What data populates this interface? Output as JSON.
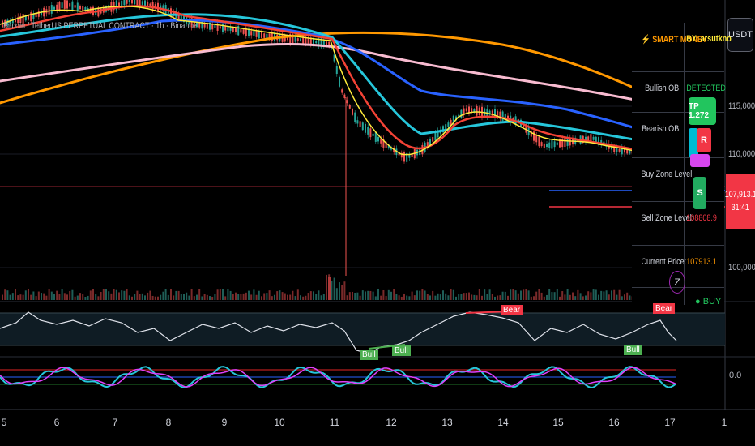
{
  "symbol_title": "Bitcoin / TetherUS PERPETUAL CONTRACT · 1h · Binance",
  "currency": "USDT",
  "price_axis": {
    "labels": [
      {
        "text": "115,000.0",
        "price": 115000
      },
      {
        "text": "110,000.0",
        "price": 110000
      },
      {
        "text": "100,000.0",
        "price": 100000
      }
    ],
    "current": {
      "price_text": "107,913.1",
      "countdown": "31:41",
      "price": 107913.1
    }
  },
  "oscillator_axis": {
    "label": "0.0"
  },
  "time_axis": [
    {
      "text": "5",
      "index": 0
    },
    {
      "text": "6",
      "index": 1
    },
    {
      "text": "7",
      "index": 2
    },
    {
      "text": "8",
      "index": 3
    },
    {
      "text": "9",
      "index": 4
    },
    {
      "text": "10",
      "index": 5
    },
    {
      "text": "11",
      "index": 6
    },
    {
      "text": "12",
      "index": 7
    },
    {
      "text": "13",
      "index": 8
    },
    {
      "text": "14",
      "index": 9
    },
    {
      "text": "15",
      "index": 10
    },
    {
      "text": "16",
      "index": 11
    },
    {
      "text": "17",
      "index": 12
    },
    {
      "text": "1",
      "index": 13
    }
  ],
  "info_table": {
    "header_title": "⚡ SMART MONEY",
    "header_author": "BY: arsutkno",
    "rows": [
      {
        "label": "Bullish OB:",
        "value": "DETECTED",
        "color": "#22c55e"
      },
      {
        "label": "Bearish OB:",
        "value": "",
        "color": "#f23645"
      },
      {
        "label": "Buy Zone Level:",
        "value": "",
        "color": "#22c55e"
      },
      {
        "label": "Sell Zone Level:",
        "value": "108808.9",
        "color": "#f23645"
      },
      {
        "label": "Current Price:",
        "value": "107913.1",
        "color": "#ff9800"
      }
    ]
  },
  "markers": {
    "tp": "TP 1.272",
    "r": "R",
    "s": "S",
    "bull_1": "Bull",
    "bull_2": "Bull",
    "bull_3": "Bull",
    "bear_1": "Bear",
    "bear_2": "Bear",
    "signal": "Z",
    "buy": "● BUY"
  },
  "colors": {
    "ema_orange": "#ff9800",
    "ema_pink": "#f8bbd0",
    "ema_blue": "#2962ff",
    "ema_cyan": "#26c6da",
    "ema_red": "#f44336",
    "ema_yellow": "#ffeb3b",
    "bull": "#26a69a",
    "bear": "#ef5350",
    "sell_zone": "#f23645",
    "buy_zone": "#2962ff"
  }
}
